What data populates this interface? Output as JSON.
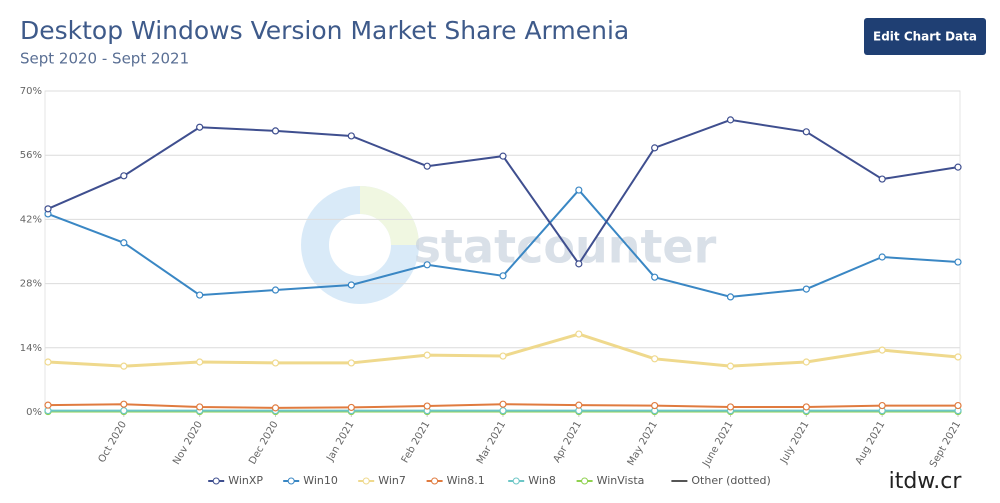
{
  "button": "Edit Chart Data",
  "watermarks": [
    "statcounter",
    "itdw.cr"
  ],
  "chart_data": {
    "type": "line",
    "title": "Desktop Windows Version Market Share Armenia",
    "subtitle": "Sept 2020 - Sept 2021",
    "categories": [
      null,
      "Oct 2020",
      "Nov 2020",
      "Dec 2020",
      "Jan 2021",
      "Feb 2021",
      "Mar 2021",
      "Apr 2021",
      "May 2021",
      "June 2021",
      "July 2021",
      "Aug 2021",
      "Sept 2021"
    ],
    "series": [
      {
        "name": "WinXP",
        "color": "#3f4f8f",
        "values": [
          44.3,
          51.5,
          62.1,
          61.3,
          60.2,
          53.6,
          55.8,
          32.3,
          57.6,
          63.7,
          61.1,
          50.8,
          53.4
        ]
      },
      {
        "name": "Win10",
        "color": "#3a87c4",
        "values": [
          43.2,
          36.9,
          25.5,
          26.6,
          27.7,
          32.1,
          29.7,
          48.4,
          29.4,
          25.1,
          26.8,
          33.8,
          32.7
        ]
      },
      {
        "name": "Win7",
        "color": "#efd98d",
        "values": [
          10.9,
          10.0,
          10.9,
          10.7,
          10.7,
          12.4,
          12.2,
          17.0,
          11.6,
          10.0,
          10.9,
          13.5,
          12.0
        ]
      },
      {
        "name": "Win8.1",
        "color": "#e07b3f",
        "values": [
          1.5,
          1.7,
          1.1,
          0.9,
          1.0,
          1.3,
          1.7,
          1.5,
          1.4,
          1.1,
          1.1,
          1.4,
          1.4
        ]
      },
      {
        "name": "Win8",
        "color": "#6cc6c6",
        "values": [
          0.3,
          0.3,
          0.3,
          0.3,
          0.3,
          0.3,
          0.3,
          0.3,
          0.3,
          0.3,
          0.3,
          0.3,
          0.3
        ]
      },
      {
        "name": "WinVista",
        "color": "#8fd14f",
        "values": [
          0.1,
          0.1,
          0.1,
          0.1,
          0.1,
          0.1,
          0.1,
          0.1,
          0.1,
          0.1,
          0.1,
          0.1,
          0.1
        ]
      },
      {
        "name": "Other (dotted)",
        "color": "#555555",
        "dashed": true,
        "values": [
          0.2,
          0.2,
          0.2,
          0.2,
          0.2,
          0.2,
          0.2,
          0.2,
          0.2,
          0.2,
          0.2,
          0.2,
          0.2
        ]
      }
    ],
    "ylim": [
      0,
      70
    ],
    "yticks": [
      {
        "value": 0,
        "label": "0%"
      },
      {
        "value": 14,
        "label": "14%"
      },
      {
        "value": 28,
        "label": "28%"
      },
      {
        "value": 42,
        "label": "42%"
      },
      {
        "value": 56,
        "label": "56%"
      },
      {
        "value": 70,
        "label": "70%"
      }
    ],
    "grid": true,
    "legend": "bottom"
  }
}
